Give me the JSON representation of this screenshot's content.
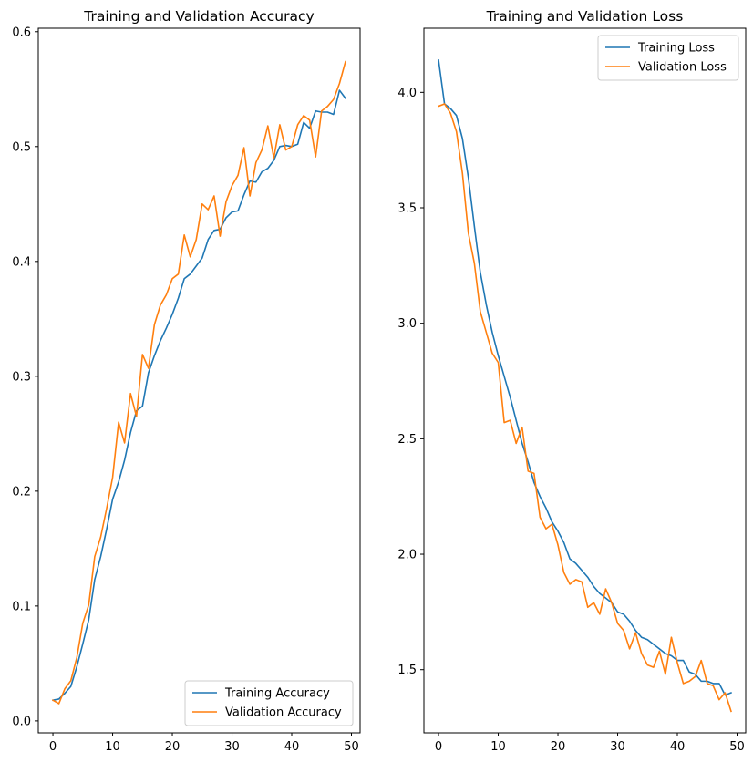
{
  "chart_data": [
    {
      "type": "line",
      "title": "Training and Validation Accuracy",
      "xlabel": "",
      "ylabel": "",
      "xlim": [
        -2.45,
        51.45
      ],
      "ylim": [
        -0.0104,
        0.603
      ],
      "xticks": [
        0,
        10,
        20,
        30,
        40,
        50
      ],
      "yticks": [
        0.0,
        0.1,
        0.2,
        0.3,
        0.4,
        0.5,
        0.6
      ],
      "ytick_labels": [
        "0.0",
        "0.1",
        "0.2",
        "0.3",
        "0.4",
        "0.5",
        "0.6"
      ],
      "legend_position": "lower right",
      "grid": false,
      "x": [
        0,
        1,
        2,
        3,
        4,
        5,
        6,
        7,
        8,
        9,
        10,
        11,
        12,
        13,
        14,
        15,
        16,
        17,
        18,
        19,
        20,
        21,
        22,
        23,
        24,
        25,
        26,
        27,
        28,
        29,
        30,
        31,
        32,
        33,
        34,
        35,
        36,
        37,
        38,
        39,
        40,
        41,
        42,
        43,
        44,
        45,
        46,
        47,
        48,
        49
      ],
      "series": [
        {
          "name": "Training Accuracy",
          "color": "#1f77b4",
          "values": [
            0.018,
            0.019,
            0.024,
            0.03,
            0.047,
            0.067,
            0.088,
            0.123,
            0.143,
            0.167,
            0.193,
            0.208,
            0.227,
            0.251,
            0.27,
            0.274,
            0.303,
            0.318,
            0.331,
            0.342,
            0.354,
            0.368,
            0.385,
            0.389,
            0.396,
            0.403,
            0.419,
            0.427,
            0.428,
            0.438,
            0.443,
            0.444,
            0.458,
            0.47,
            0.469,
            0.478,
            0.481,
            0.488,
            0.5,
            0.501,
            0.5,
            0.502,
            0.521,
            0.516,
            0.531,
            0.53,
            0.53,
            0.528,
            0.549,
            0.542
          ]
        },
        {
          "name": "Validation Accuracy",
          "color": "#ff7f0e",
          "values": [
            0.018,
            0.015,
            0.028,
            0.035,
            0.055,
            0.085,
            0.101,
            0.143,
            0.16,
            0.185,
            0.212,
            0.26,
            0.242,
            0.285,
            0.265,
            0.319,
            0.307,
            0.345,
            0.362,
            0.371,
            0.385,
            0.389,
            0.423,
            0.404,
            0.419,
            0.45,
            0.445,
            0.457,
            0.422,
            0.452,
            0.466,
            0.475,
            0.499,
            0.457,
            0.486,
            0.497,
            0.518,
            0.49,
            0.519,
            0.497,
            0.5,
            0.519,
            0.527,
            0.523,
            0.491,
            0.531,
            0.535,
            0.541,
            0.555,
            0.574
          ]
        }
      ]
    },
    {
      "type": "line",
      "title": "Training and Validation Loss",
      "xlabel": "",
      "ylabel": "",
      "xlim": [
        -2.45,
        51.45
      ],
      "ylim": [
        1.2265,
        4.2776
      ],
      "xticks": [
        0,
        10,
        20,
        30,
        40,
        50
      ],
      "yticks": [
        1.5,
        2.0,
        2.5,
        3.0,
        3.5,
        4.0
      ],
      "ytick_labels": [
        "1.5",
        "2.0",
        "2.5",
        "3.0",
        "3.5",
        "4.0"
      ],
      "legend_position": "upper right",
      "grid": false,
      "x": [
        0,
        1,
        2,
        3,
        4,
        5,
        6,
        7,
        8,
        9,
        10,
        11,
        12,
        13,
        14,
        15,
        16,
        17,
        18,
        19,
        20,
        21,
        22,
        23,
        24,
        25,
        26,
        27,
        28,
        29,
        30,
        31,
        32,
        33,
        34,
        35,
        36,
        37,
        38,
        39,
        40,
        41,
        42,
        43,
        44,
        45,
        46,
        47,
        48,
        49
      ],
      "series": [
        {
          "name": "Training Loss",
          "color": "#1f77b4",
          "values": [
            4.14,
            3.95,
            3.93,
            3.9,
            3.8,
            3.63,
            3.42,
            3.22,
            3.08,
            2.96,
            2.86,
            2.77,
            2.68,
            2.58,
            2.48,
            2.4,
            2.31,
            2.25,
            2.2,
            2.14,
            2.1,
            2.05,
            1.98,
            1.96,
            1.93,
            1.9,
            1.86,
            1.83,
            1.81,
            1.79,
            1.75,
            1.74,
            1.71,
            1.67,
            1.64,
            1.63,
            1.61,
            1.59,
            1.57,
            1.56,
            1.54,
            1.54,
            1.49,
            1.48,
            1.45,
            1.45,
            1.44,
            1.44,
            1.39,
            1.4
          ]
        },
        {
          "name": "Validation Loss",
          "color": "#ff7f0e",
          "values": [
            3.94,
            3.95,
            3.91,
            3.83,
            3.65,
            3.39,
            3.26,
            3.05,
            2.96,
            2.87,
            2.83,
            2.57,
            2.58,
            2.48,
            2.55,
            2.36,
            2.35,
            2.16,
            2.11,
            2.13,
            2.04,
            1.92,
            1.87,
            1.89,
            1.88,
            1.77,
            1.79,
            1.74,
            1.85,
            1.79,
            1.7,
            1.67,
            1.59,
            1.66,
            1.57,
            1.52,
            1.51,
            1.58,
            1.48,
            1.64,
            1.53,
            1.44,
            1.45,
            1.47,
            1.54,
            1.44,
            1.43,
            1.37,
            1.4,
            1.32
          ]
        }
      ]
    }
  ]
}
